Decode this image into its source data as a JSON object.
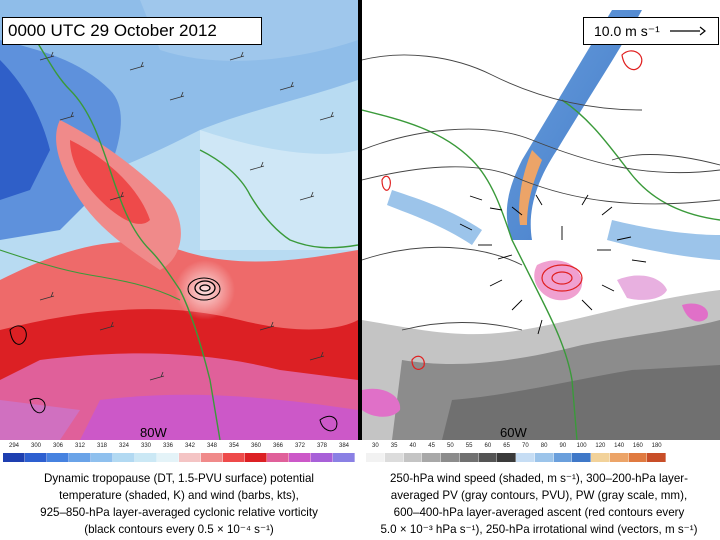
{
  "header": {
    "time_label": "0000 UTC 29 October 2012",
    "reference_vector_label": "10.0 m s⁻¹"
  },
  "left_panel": {
    "longitude_label": "80W",
    "colorbar_ticks": [
      "294",
      "300",
      "306",
      "312",
      "318",
      "324",
      "330",
      "336",
      "342",
      "348",
      "354",
      "360",
      "366",
      "372",
      "378",
      "384"
    ],
    "colorbar_colors": [
      "#1e3fb0",
      "#2d5fd0",
      "#4682e0",
      "#6aa3e8",
      "#8fc0ee",
      "#b2d9f2",
      "#cbe8f5",
      "#e4f3f8",
      "#f4c4c4",
      "#f08a8a",
      "#ee4a4a",
      "#dc2024",
      "#e0609a",
      "#cc58c8",
      "#a860d8",
      "#8a80e4"
    ],
    "caption_lines": [
      "Dynamic tropopause (DT, 1.5-PVU surface) potential",
      "temperature (shaded, K) and wind (barbs, kts),",
      "925–850-hPa layer-averaged cyclonic relative vorticity",
      "(black contours every 0.5 × 10⁻⁴ s⁻¹)"
    ]
  },
  "right_panel": {
    "longitude_label": "60W",
    "colorbar_ticks": [
      "30",
      "35",
      "40",
      "45",
      "50",
      "55",
      "60",
      "65",
      "70",
      "80",
      "90",
      "100",
      "120",
      "140",
      "160",
      "180"
    ],
    "colorbar_colors": [
      "#f2f2f2",
      "#dcdcdc",
      "#c4c4c4",
      "#a8a8a8",
      "#8c8c8c",
      "#707070",
      "#545454",
      "#3a3a3a",
      "#c6ddf4",
      "#9cc4ea",
      "#6a9fdc",
      "#3f78c8",
      "#f2d29a",
      "#eca468",
      "#e07a40",
      "#c84e28"
    ],
    "caption_lines": [
      "250-hPa wind speed (shaded, m s⁻¹), 300–200-hPa layer-",
      "averaged PV (gray contours, PVU), PW (gray scale, mm),",
      "600–400-hPa layer-averaged ascent (red contours every",
      "5.0 × 10⁻³ hPa s⁻¹), 250-hPa irrotational wind (vectors, m s⁻¹)"
    ]
  },
  "colors": {
    "coastline": "#3a9a3a",
    "pv_contour": "#444444",
    "ascent_contour": "#e02020",
    "vorticity_contour": "#000000"
  }
}
